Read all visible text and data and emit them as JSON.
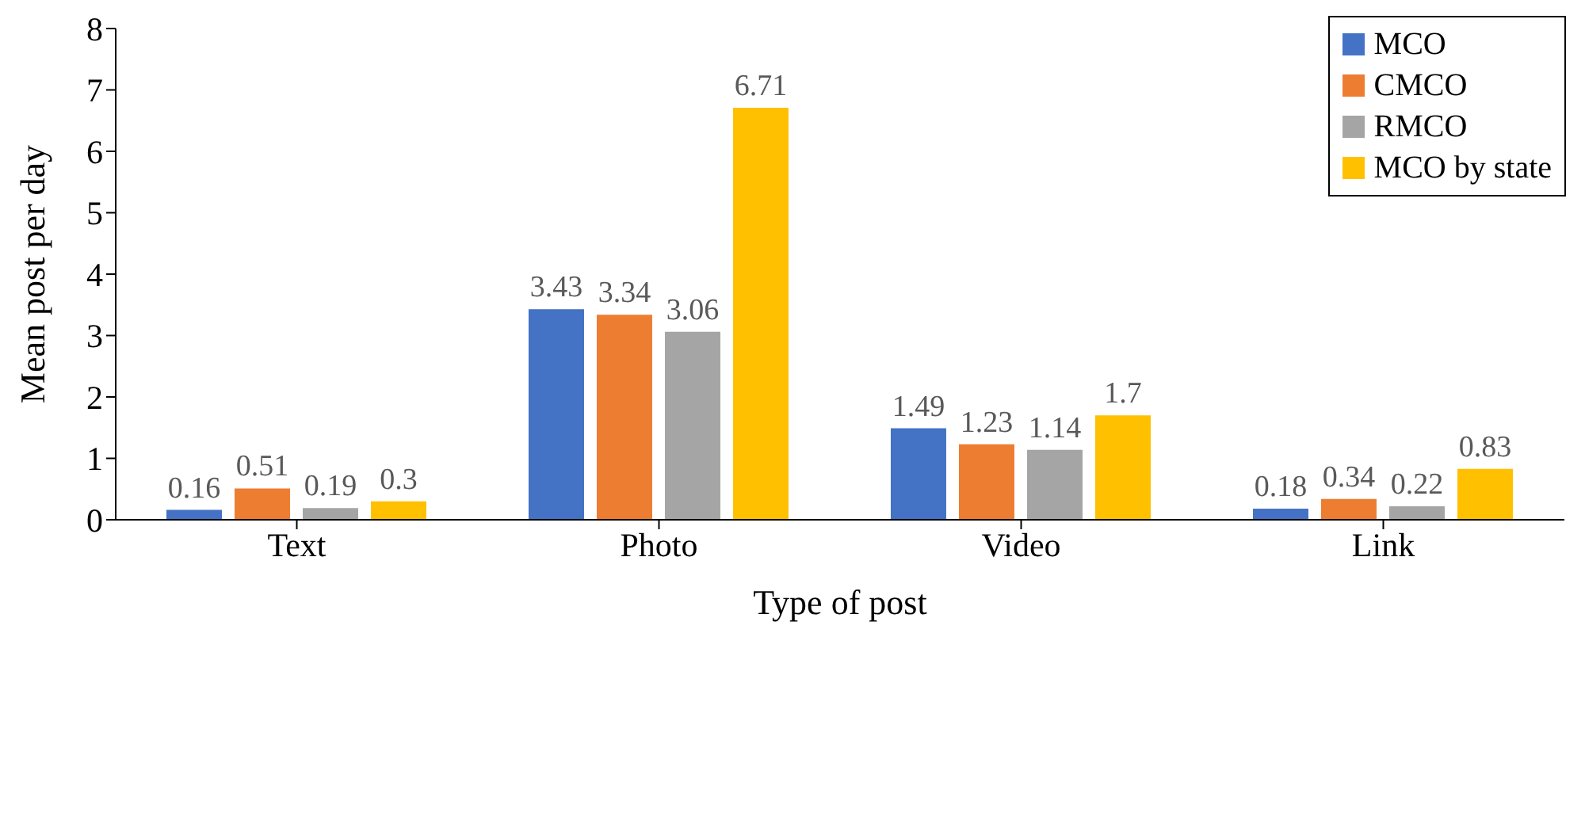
{
  "chart_data": {
    "type": "bar",
    "xlabel": "Type of post",
    "ylabel": "Mean post per day",
    "categories": [
      "Text",
      "Photo",
      "Video",
      "Link"
    ],
    "series": [
      {
        "name": "MCO",
        "color": "#4472c4",
        "values": [
          0.16,
          3.43,
          1.49,
          0.18
        ]
      },
      {
        "name": "CMCO",
        "color": "#ed7d31",
        "values": [
          0.51,
          3.34,
          1.23,
          0.34
        ]
      },
      {
        "name": "RMCO",
        "color": "#a5a5a5",
        "values": [
          0.19,
          3.06,
          1.14,
          0.22
        ]
      },
      {
        "name": "MCO by state",
        "color": "#ffc000",
        "values": [
          0.3,
          6.71,
          1.7,
          0.83
        ]
      }
    ],
    "ylim": [
      0,
      8
    ],
    "yticks": [
      0,
      1,
      2,
      3,
      4,
      5,
      6,
      7,
      8
    ],
    "grid": false,
    "legend": "top right",
    "data_labels": true
  }
}
